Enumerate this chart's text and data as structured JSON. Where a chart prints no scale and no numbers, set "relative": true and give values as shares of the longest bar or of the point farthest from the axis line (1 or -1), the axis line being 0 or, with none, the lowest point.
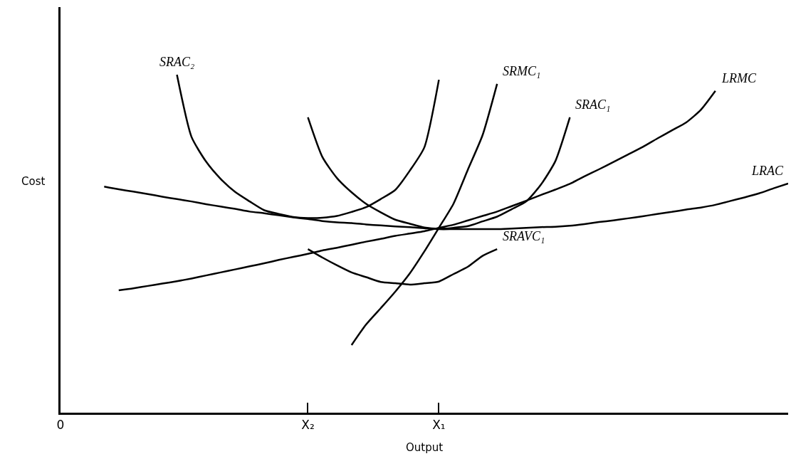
{
  "chart_data": {
    "type": "line",
    "relative": true,
    "xlabel": "Output",
    "ylabel": "Cost",
    "categories": [
      "0",
      null,
      null,
      null,
      null,
      null,
      null,
      null,
      null,
      null,
      null,
      null,
      null,
      null,
      null,
      null,
      null,
      "X₂",
      null,
      null,
      null,
      null,
      null,
      null,
      null,
      null,
      "X₁",
      null,
      null,
      null,
      null,
      null,
      null,
      null,
      null,
      null,
      null,
      null,
      null,
      null,
      null,
      null,
      null,
      null,
      null,
      null,
      null,
      null,
      null,
      null,
      null
    ],
    "grid": false,
    "legend": false,
    "marker": "none",
    "line_style": "solid",
    "series": [
      {
        "name": "SRAC₂",
        "color": "#000000",
        "values": [
          null,
          null,
          null,
          null,
          null,
          null,
          null,
          null,
          1.0,
          0.816,
          0.743,
          0.692,
          0.653,
          0.625,
          0.599,
          0.588,
          0.579,
          0.576,
          0.577,
          0.582,
          0.594,
          0.608,
          0.632,
          0.659,
          0.716,
          0.785,
          0.985,
          null,
          null,
          null,
          null,
          null,
          null,
          null,
          null,
          null,
          null,
          null,
          null,
          null,
          null,
          null,
          null,
          null,
          null,
          null,
          null,
          null,
          null,
          null,
          null
        ]
      },
      {
        "name": "SRAC₁",
        "color": "#000000",
        "values": [
          null,
          null,
          null,
          null,
          null,
          null,
          null,
          null,
          null,
          null,
          null,
          null,
          null,
          null,
          null,
          null,
          null,
          0.874,
          0.756,
          0.694,
          0.652,
          0.618,
          0.593,
          0.571,
          0.559,
          0.548,
          0.544,
          0.547,
          0.552,
          0.566,
          0.58,
          0.602,
          0.625,
          0.674,
          0.744,
          0.874,
          null,
          null,
          null,
          null,
          null,
          null,
          null,
          null,
          null,
          null,
          null,
          null,
          null,
          null,
          null
        ]
      },
      {
        "name": "SRMC₁",
        "color": "#000000",
        "values": [
          null,
          null,
          null,
          null,
          null,
          null,
          null,
          null,
          null,
          null,
          null,
          null,
          null,
          null,
          null,
          null,
          null,
          null,
          null,
          null,
          0.2,
          0.261,
          0.309,
          0.358,
          0.412,
          0.477,
          0.547,
          0.618,
          0.72,
          0.821,
          0.973,
          null,
          null,
          null,
          null,
          null,
          null,
          null,
          null,
          null,
          null,
          null,
          null,
          null,
          null,
          null,
          null,
          null,
          null,
          null,
          null
        ]
      },
      {
        "name": "LRMC",
        "color": "#000000",
        "values": [
          null,
          null,
          null,
          null,
          0.362,
          0.368,
          0.375,
          0.382,
          0.389,
          0.397,
          0.406,
          0.415,
          0.424,
          0.433,
          0.442,
          0.452,
          0.461,
          0.47,
          0.48,
          0.488,
          0.497,
          0.506,
          0.514,
          0.523,
          0.53,
          0.537,
          0.547,
          0.556,
          0.569,
          0.582,
          0.595,
          0.611,
          0.627,
          0.644,
          0.66,
          0.677,
          0.699,
          0.72,
          0.742,
          0.764,
          0.786,
          0.811,
          0.835,
          0.859,
          0.896,
          0.952,
          null,
          null,
          null,
          null,
          null
        ]
      },
      {
        "name": "LRAC",
        "color": "#000000",
        "values": [
          null,
          null,
          null,
          0.669,
          0.661,
          0.654,
          0.647,
          0.639,
          0.632,
          0.625,
          0.617,
          0.61,
          0.603,
          0.595,
          0.59,
          0.584,
          0.578,
          0.573,
          0.567,
          0.563,
          0.561,
          0.557,
          0.554,
          0.551,
          0.549,
          0.546,
          0.543,
          0.543,
          0.543,
          0.543,
          0.543,
          0.545,
          0.547,
          0.549,
          0.55,
          0.553,
          0.558,
          0.564,
          0.569,
          0.575,
          0.581,
          0.588,
          0.594,
          0.601,
          0.607,
          0.615,
          0.626,
          0.637,
          0.649,
          0.664,
          0.678
        ]
      },
      {
        "name": "SRAVC₁",
        "color": "#000000",
        "values": [
          null,
          null,
          null,
          null,
          null,
          null,
          null,
          null,
          null,
          null,
          null,
          null,
          null,
          null,
          null,
          null,
          null,
          0.484,
          0.459,
          0.436,
          0.415,
          0.401,
          0.387,
          0.383,
          0.379,
          0.383,
          0.388,
          0.41,
          0.432,
          0.464,
          0.484,
          null,
          null,
          null,
          null,
          null,
          null,
          null,
          null,
          null,
          null,
          null,
          null,
          null,
          null,
          null,
          null,
          null,
          null,
          null,
          null
        ]
      }
    ]
  }
}
